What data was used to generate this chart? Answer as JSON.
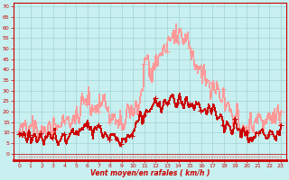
{
  "xlabel": "Vent moyen/en rafales ( km/h )",
  "xlabel_color": "#cc0000",
  "background_color": "#c8f0f0",
  "grid_color": "#99cccc",
  "yticks": [
    0,
    5,
    10,
    15,
    20,
    25,
    30,
    35,
    40,
    45,
    50,
    55,
    60,
    65,
    70
  ],
  "xticks": [
    0,
    1,
    2,
    3,
    4,
    5,
    6,
    7,
    8,
    9,
    10,
    11,
    12,
    13,
    14,
    15,
    16,
    17,
    18,
    19,
    20,
    21,
    22,
    23
  ],
  "ylim": [
    -3,
    72
  ],
  "xlim": [
    -0.5,
    23.5
  ],
  "line_avg_color": "#cc0000",
  "line_gust_color": "#ff9999",
  "marker_avg_color": "#cc0000",
  "marker_gust_color": "#ff9999",
  "seed": 1234,
  "n_points": 288,
  "avg_base": [
    9,
    8,
    7,
    7,
    8,
    10,
    13,
    11,
    8,
    6,
    11,
    18,
    22,
    26,
    25,
    26,
    22,
    18,
    14,
    11,
    9,
    8,
    9,
    10
  ],
  "gust_base": [
    12,
    11,
    10,
    11,
    14,
    18,
    22,
    25,
    20,
    14,
    20,
    32,
    42,
    55,
    58,
    50,
    42,
    32,
    24,
    16,
    13,
    14,
    16,
    18
  ],
  "avg_noise": 3.5,
  "gust_noise": 5.0,
  "avg_peak_hour": 12,
  "gust_peak_hour": 11,
  "dir_arrow_color": "#ff6666",
  "bottom_line_color": "#cc0000"
}
